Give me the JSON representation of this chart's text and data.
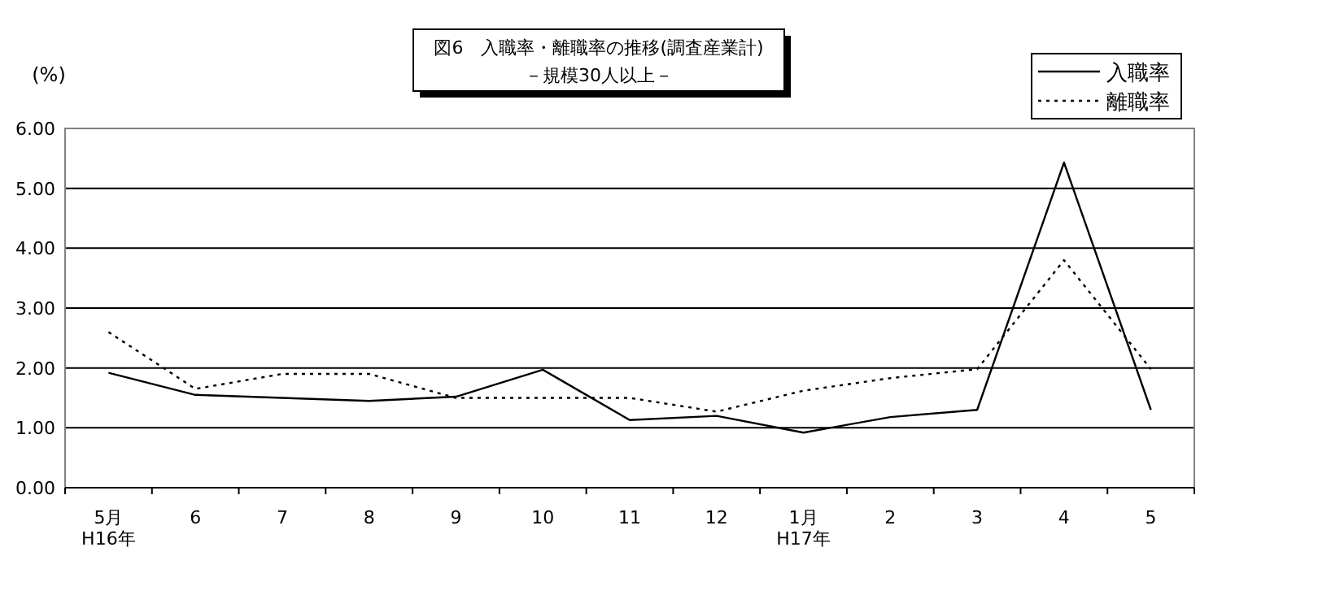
{
  "chart_data": {
    "type": "line",
    "title": "図6　入職率・離職率の推移(調査産業計)",
    "subtitle": "－規模30人以上－",
    "ylabel": "(%)",
    "categories": [
      "5月\nH16年",
      "6",
      "7",
      "8",
      "9",
      "10",
      "11",
      "12",
      "1月\nH17年",
      "2",
      "3",
      "4",
      "5"
    ],
    "series": [
      {
        "name": "入職率",
        "color": "#000000",
        "line_style": "solid",
        "values": [
          1.92,
          1.55,
          1.5,
          1.45,
          1.52,
          1.97,
          1.13,
          1.2,
          0.92,
          1.18,
          1.3,
          5.43,
          1.3
        ]
      },
      {
        "name": "離職率",
        "color": "#000000",
        "line_style": "dotted",
        "values": [
          2.6,
          1.65,
          1.9,
          1.9,
          1.5,
          1.5,
          1.5,
          1.27,
          1.62,
          1.83,
          1.98,
          3.8,
          1.98
        ]
      }
    ],
    "ylim": [
      0,
      6
    ],
    "yticks": [
      {
        "value": 0,
        "label": "0.00"
      },
      {
        "value": 1,
        "label": "1.00"
      },
      {
        "value": 2,
        "label": "2.00"
      },
      {
        "value": 3,
        "label": "3.00"
      },
      {
        "value": 4,
        "label": "4.00"
      },
      {
        "value": 5,
        "label": "5.00"
      },
      {
        "value": 6,
        "label": "6.00"
      }
    ],
    "grid": "y",
    "legend": "top right",
    "marker": "none"
  }
}
